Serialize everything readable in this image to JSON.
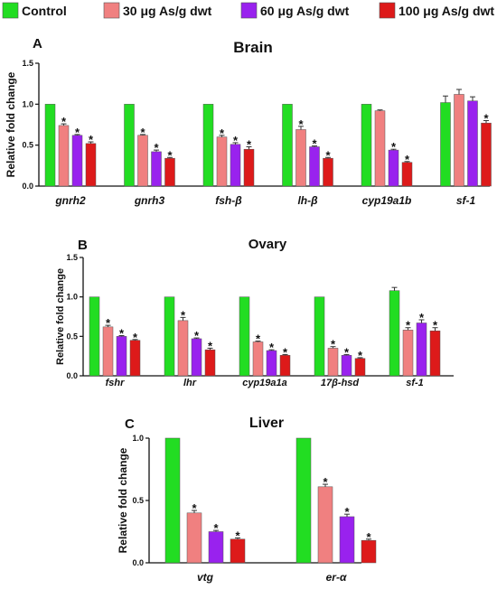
{
  "legend": [
    {
      "name": "Control",
      "color": "#22dd22"
    },
    {
      "name": "30 μg As/g dwt",
      "color": "#f08080"
    },
    {
      "name": "60 μg As/g dwt",
      "color": "#9922ee"
    },
    {
      "name": "100 μg As/g dwt",
      "color": "#dd1a1a"
    }
  ],
  "chart_data": [
    {
      "type": "bar",
      "panel": "A",
      "title": "Brain",
      "ylabel": "Relative fold change",
      "ylim": [
        0,
        1.5
      ],
      "yticks": [
        "0.0",
        "0.5",
        "1.0",
        "1.5"
      ],
      "categories": [
        "gnrh2",
        "gnrh3",
        "fsh-β",
        "lh-β",
        "cyp19a1b",
        "sf-1"
      ],
      "series": [
        {
          "name": "Control",
          "color": "#22dd22",
          "values": [
            1.0,
            1.0,
            1.0,
            1.0,
            1.0,
            1.02
          ],
          "errors": [
            0,
            0,
            0,
            0,
            0,
            0.08
          ],
          "significant": [
            false,
            false,
            false,
            false,
            false,
            false
          ]
        },
        {
          "name": "30 μg As/g dwt",
          "color": "#f08080",
          "values": [
            0.74,
            0.62,
            0.6,
            0.69,
            0.92,
            1.12
          ],
          "errors": [
            0.02,
            0.01,
            0.02,
            0.04,
            0.01,
            0.06
          ],
          "significant": [
            true,
            true,
            true,
            true,
            false,
            false
          ]
        },
        {
          "name": "60 μg As/g dwt",
          "color": "#9922ee",
          "values": [
            0.62,
            0.42,
            0.51,
            0.48,
            0.44,
            1.04
          ],
          "errors": [
            0.01,
            0.02,
            0.02,
            0.01,
            0.01,
            0.05
          ],
          "significant": [
            true,
            true,
            true,
            true,
            true,
            false
          ]
        },
        {
          "name": "100 μg As/g dwt",
          "color": "#dd1a1a",
          "values": [
            0.52,
            0.34,
            0.45,
            0.34,
            0.29,
            0.77
          ],
          "errors": [
            0.02,
            0.01,
            0.03,
            0.01,
            0.01,
            0.03
          ],
          "significant": [
            true,
            true,
            true,
            true,
            true,
            true
          ]
        }
      ],
      "star": "*"
    },
    {
      "type": "bar",
      "panel": "B",
      "title": "Ovary",
      "ylabel": "Relative fold change",
      "ylim": [
        0,
        1.5
      ],
      "yticks": [
        "0.0",
        "0.5",
        "1.0",
        "1.5"
      ],
      "categories": [
        "fshr",
        "lhr",
        "cyp19a1a",
        "17β-hsd",
        "sf-1"
      ],
      "series": [
        {
          "name": "Control",
          "color": "#22dd22",
          "values": [
            1.0,
            1.0,
            1.0,
            1.0,
            1.08
          ],
          "errors": [
            0,
            0,
            0,
            0,
            0.04
          ],
          "significant": [
            false,
            false,
            false,
            false,
            false
          ]
        },
        {
          "name": "30 μg As/g dwt",
          "color": "#f08080",
          "values": [
            0.62,
            0.7,
            0.43,
            0.35,
            0.58
          ],
          "errors": [
            0.02,
            0.04,
            0.01,
            0.02,
            0.03
          ],
          "significant": [
            true,
            true,
            true,
            true,
            true
          ]
        },
        {
          "name": "60 μg As/g dwt",
          "color": "#9922ee",
          "values": [
            0.5,
            0.47,
            0.32,
            0.26,
            0.67
          ],
          "errors": [
            0.01,
            0.01,
            0.01,
            0.01,
            0.04
          ],
          "significant": [
            true,
            true,
            true,
            true,
            true
          ]
        },
        {
          "name": "100 μg As/g dwt",
          "color": "#dd1a1a",
          "values": [
            0.45,
            0.33,
            0.26,
            0.22,
            0.57
          ],
          "errors": [
            0.01,
            0.02,
            0.01,
            0.01,
            0.04
          ],
          "significant": [
            true,
            true,
            true,
            true,
            true
          ]
        }
      ],
      "star": "*"
    },
    {
      "type": "bar",
      "panel": "C",
      "title": "Liver",
      "ylabel": "Relative fold change",
      "ylim": [
        0,
        1.0
      ],
      "yticks": [
        "0.0",
        "0.5",
        "1.0"
      ],
      "categories": [
        "vtg",
        "er-α"
      ],
      "series": [
        {
          "name": "Control",
          "color": "#22dd22",
          "values": [
            1.0,
            1.0
          ],
          "errors": [
            0,
            0
          ],
          "significant": [
            false,
            false
          ]
        },
        {
          "name": "30 μg As/g dwt",
          "color": "#f08080",
          "values": [
            0.4,
            0.61
          ],
          "errors": [
            0.02,
            0.02
          ],
          "significant": [
            true,
            true
          ]
        },
        {
          "name": "60 μg As/g dwt",
          "color": "#9922ee",
          "values": [
            0.25,
            0.37
          ],
          "errors": [
            0.01,
            0.02
          ],
          "significant": [
            true,
            true
          ]
        },
        {
          "name": "100 μg As/g dwt",
          "color": "#dd1a1a",
          "values": [
            0.19,
            0.18
          ],
          "errors": [
            0.01,
            0.01
          ],
          "significant": [
            true,
            true
          ]
        }
      ],
      "star": "*"
    }
  ]
}
